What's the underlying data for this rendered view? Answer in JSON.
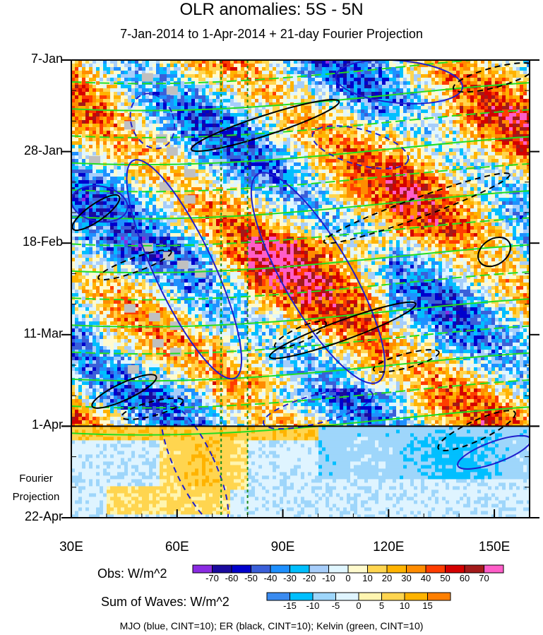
{
  "chart_data": {
    "type": "heatmap",
    "title": "OLR anomalies: 5S - 5N",
    "subtitle": "7-Jan-2014 to 1-Apr-2014 + 21-day Fourier Projection",
    "x_axis": {
      "range": [
        30,
        160
      ],
      "ticks": [
        {
          "value": 30,
          "label": "30E"
        },
        {
          "value": 60,
          "label": "60E"
        },
        {
          "value": 90,
          "label": "90E"
        },
        {
          "value": 120,
          "label": "120E"
        },
        {
          "value": 150,
          "label": "150E"
        }
      ]
    },
    "y_axis": {
      "range_days": [
        0,
        105
      ],
      "direction": "downward",
      "ticks": [
        {
          "day": 0,
          "label": "7-Jan"
        },
        {
          "day": 21,
          "label": "28-Jan"
        },
        {
          "day": 42,
          "label": "18-Feb"
        },
        {
          "day": 63,
          "label": "11-Mar"
        },
        {
          "day": 84,
          "label": "1-Apr"
        },
        {
          "day": 105,
          "label": "22-Apr"
        }
      ]
    },
    "forecast_start_day": 84,
    "forecast_label": [
      "Fourier",
      "Projection"
    ],
    "reference_longitudes": [
      72.5,
      80
    ],
    "obs_legend": {
      "title": "Obs: W/m^2",
      "levels": [
        "-70",
        "-60",
        "-50",
        "-40",
        "-30",
        "-20",
        "-10",
        "0",
        "10",
        "20",
        "30",
        "40",
        "50",
        "60",
        "70"
      ],
      "colors": [
        "#8a2be2",
        "#1a0a9e",
        "#0000cd",
        "#3a5fd9",
        "#1e90ff",
        "#00bfff",
        "#a6cdfa",
        "#e0f6ff",
        "#fffacd",
        "#ffd54f",
        "#ffb300",
        "#ff8c00",
        "#ff3d00",
        "#d40000",
        "#a31a1a",
        "#ff5dc8"
      ]
    },
    "waves_legend": {
      "title": "Sum of Waves: W/m^2",
      "levels": [
        "-15",
        "-10",
        "-5",
        "0",
        "5",
        "10",
        "15"
      ],
      "colors": [
        "#3a8bf0",
        "#00bfff",
        "#9ed6fb",
        "#dff4ff",
        "#fff5b0",
        "#ffd54f",
        "#ffb300",
        "#ff7f00"
      ]
    },
    "wave_contours": [
      {
        "name": "MJO",
        "color": "#1f1fcc",
        "cint": 10
      },
      {
        "name": "ER",
        "color": "#000000",
        "cint": 10
      },
      {
        "name": "Kelvin",
        "color": "#22dd22",
        "cint": 10
      }
    ],
    "footer": "MJO (blue, CINT=10); ER (black, CINT=10); Kelvin (green, CINT=10)"
  }
}
